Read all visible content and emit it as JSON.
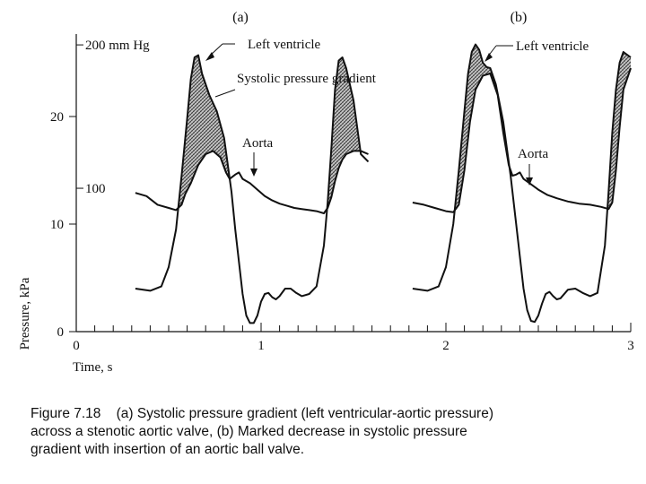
{
  "chart_data": {
    "type": "line",
    "xlabel": "Time, s",
    "ylabel": "Pressure, kPa",
    "x_ticks": [
      0,
      1,
      2,
      3
    ],
    "y_ticks": [
      0,
      10,
      20
    ],
    "xlim": [
      0,
      3
    ],
    "ylim": [
      0,
      27
    ],
    "mmHg_ticks": [
      {
        "value": 13.33,
        "label": "100"
      },
      {
        "value": 26.66,
        "label": "200 mm Hg"
      }
    ],
    "panels": [
      {
        "label": "(a)",
        "annotations": [
          "Left ventricle",
          "Systolic pressure gradient",
          "Aorta"
        ],
        "series": [
          {
            "name": "Left ventricle",
            "x": [
              0.32,
              0.4,
              0.46,
              0.5,
              0.54,
              0.57,
              0.6,
              0.62,
              0.64,
              0.66,
              0.68,
              0.72,
              0.76,
              0.8,
              0.84,
              0.86,
              0.88,
              0.9,
              0.92,
              0.94,
              0.96,
              0.98,
              1.0,
              1.02,
              1.04,
              1.06,
              1.08,
              1.1,
              1.13,
              1.16,
              1.19,
              1.22,
              1.26,
              1.3,
              1.34,
              1.36,
              1.38,
              1.4,
              1.42,
              1.44,
              1.46,
              1.5,
              1.54,
              1.58
            ],
            "y": [
              4.0,
              3.8,
              4.2,
              6.0,
              9.5,
              14.5,
              19.8,
              23.5,
              25.5,
              25.7,
              24.0,
              22.0,
              20.5,
              18.0,
              13.0,
              9.5,
              6.5,
              3.5,
              1.5,
              0.8,
              0.8,
              1.5,
              2.8,
              3.5,
              3.6,
              3.2,
              3.0,
              3.3,
              4.0,
              4.0,
              3.6,
              3.3,
              3.5,
              4.2,
              8.0,
              12.0,
              17.0,
              22.5,
              25.2,
              25.5,
              24.5,
              21.5,
              16.5,
              15.8
            ]
          },
          {
            "name": "Aorta",
            "x": [
              0.32,
              0.38,
              0.44,
              0.5,
              0.54,
              0.57,
              0.59,
              0.62,
              0.66,
              0.7,
              0.74,
              0.78,
              0.81,
              0.83,
              0.86,
              0.88,
              0.9,
              0.94,
              0.98,
              1.02,
              1.06,
              1.1,
              1.14,
              1.18,
              1.22,
              1.26,
              1.3,
              1.34,
              1.36,
              1.38,
              1.4,
              1.42,
              1.44,
              1.46,
              1.5,
              1.54,
              1.58
            ],
            "y": [
              12.9,
              12.6,
              11.8,
              11.5,
              11.3,
              11.8,
              12.8,
              13.8,
              15.5,
              16.5,
              16.8,
              16.2,
              14.8,
              14.2,
              14.6,
              14.8,
              14.2,
              13.8,
              13.2,
              12.6,
              12.2,
              11.9,
              11.7,
              11.5,
              11.4,
              11.3,
              11.2,
              11.0,
              11.5,
              12.5,
              14.0,
              15.2,
              16.0,
              16.5,
              16.8,
              16.8,
              16.5
            ]
          }
        ]
      },
      {
        "label": "(b)",
        "annotations": [
          "Left ventricle",
          "Aorta"
        ],
        "series": [
          {
            "name": "Left ventricle",
            "x": [
              1.82,
              1.9,
              1.96,
              2.0,
              2.04,
              2.07,
              2.1,
              2.12,
              2.14,
              2.16,
              2.18,
              2.2,
              2.22,
              2.24,
              2.27,
              2.31,
              2.35,
              2.38,
              2.4,
              2.42,
              2.44,
              2.46,
              2.48,
              2.5,
              2.52,
              2.54,
              2.56,
              2.58,
              2.6,
              2.62,
              2.66,
              2.7,
              2.74,
              2.78,
              2.82,
              2.86,
              2.88,
              2.9,
              2.92,
              2.94,
              2.96,
              3.0
            ],
            "y": [
              4.0,
              3.8,
              4.2,
              6.0,
              10.0,
              15.0,
              20.5,
              24.0,
              26.0,
              26.7,
              26.2,
              25.0,
              24.6,
              24.5,
              23.0,
              19.5,
              14.5,
              10.0,
              7.0,
              4.0,
              2.0,
              1.0,
              0.9,
              1.5,
              2.6,
              3.5,
              3.7,
              3.3,
              3.0,
              3.1,
              3.9,
              4.0,
              3.6,
              3.3,
              3.6,
              8.0,
              13.0,
              18.5,
              22.5,
              25.0,
              26.0,
              25.5
            ]
          },
          {
            "name": "Aorta",
            "x": [
              1.82,
              1.88,
              1.94,
              2.0,
              2.04,
              2.07,
              2.1,
              2.13,
              2.16,
              2.2,
              2.24,
              2.28,
              2.31,
              2.34,
              2.36,
              2.38,
              2.4,
              2.42,
              2.46,
              2.5,
              2.55,
              2.6,
              2.66,
              2.72,
              2.78,
              2.84,
              2.88,
              2.9,
              2.92,
              2.94,
              2.96,
              3.0
            ],
            "y": [
              12.0,
              11.8,
              11.5,
              11.2,
              11.1,
              11.8,
              15.0,
              19.5,
              22.5,
              23.8,
              24.0,
              22.0,
              18.5,
              15.5,
              14.5,
              14.6,
              14.8,
              14.2,
              13.7,
              13.2,
              12.7,
              12.4,
              12.1,
              11.9,
              11.8,
              11.6,
              11.4,
              12.0,
              15.0,
              19.0,
              22.5,
              24.5
            ]
          }
        ]
      }
    ]
  },
  "caption": {
    "line1": "Figure 7.18    (a) Systolic pressure gradient (left ventricular-aortic pressure)",
    "line2": "across a stenotic aortic valve, (b) Marked decrease in systolic pressure",
    "line3": "gradient with insertion of an aortic ball valve."
  }
}
